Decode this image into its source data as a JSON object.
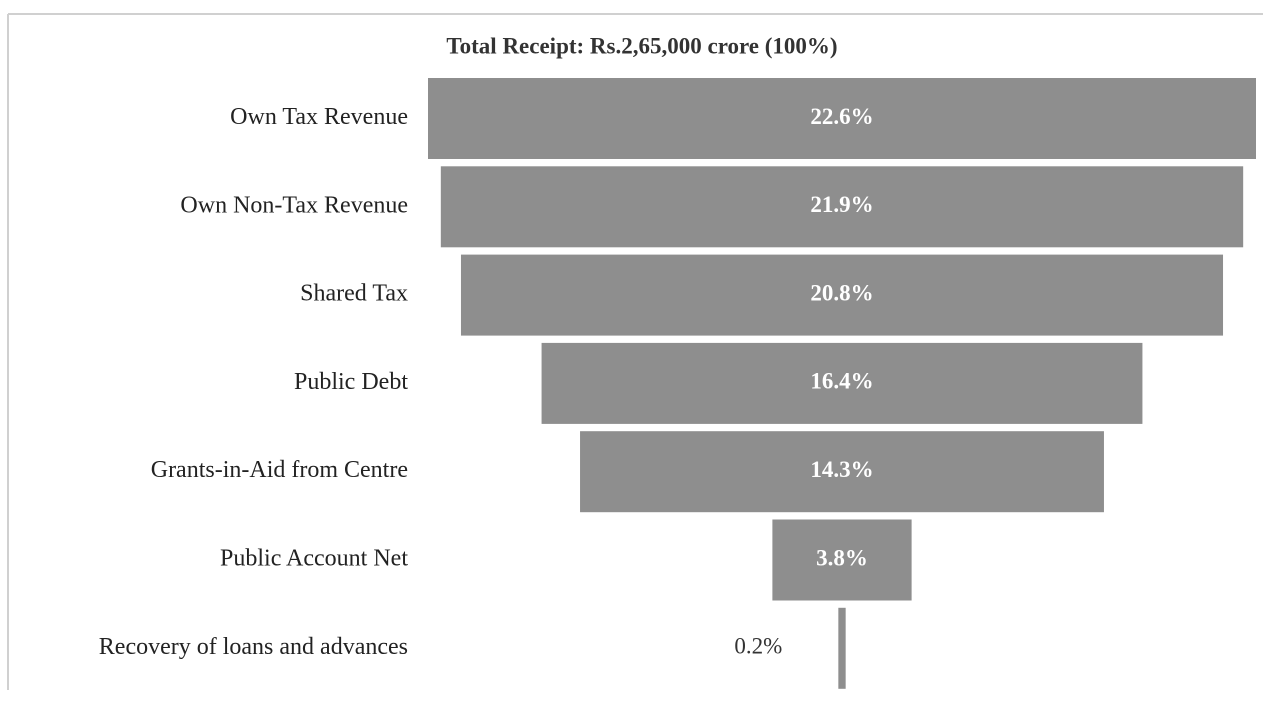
{
  "chart_data": {
    "type": "funnel",
    "title": "Total Receipt: Rs.2,65,000 crore (100%)",
    "categories": [
      "Own Tax Revenue",
      "Own Non-Tax Revenue",
      "Shared Tax",
      "Public Debt",
      "Grants-in-Aid from Centre",
      "Public Account Net",
      "Recovery of loans and advances"
    ],
    "values": [
      22.6,
      21.9,
      20.8,
      16.4,
      14.3,
      3.8,
      0.2
    ],
    "value_labels": [
      "22.6%",
      "21.9%",
      "20.8%",
      "16.4%",
      "14.3%",
      "3.8%",
      "0.2%"
    ],
    "color": "#8e8e8e"
  }
}
